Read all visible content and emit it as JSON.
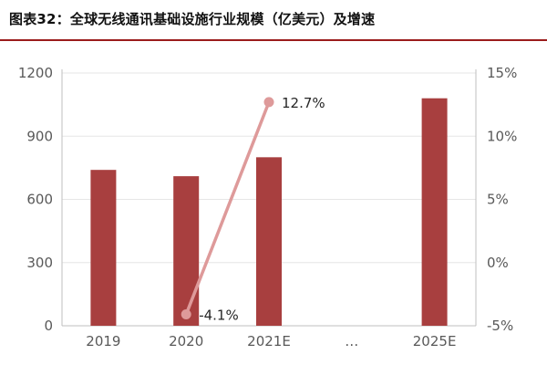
{
  "title": "图表32：全球无线通讯基础设施行业规模（亿美元）及增速",
  "chart_data": {
    "type": "bar",
    "title": "图表32：全球无线通讯基础设施行业规模（亿美元）及增速",
    "categories": [
      "2019",
      "2020",
      "2021E",
      "…",
      "2025E"
    ],
    "series": [
      {
        "type": "bar",
        "axis": "left",
        "values": [
          740,
          710,
          800,
          null,
          1080
        ]
      },
      {
        "type": "line",
        "axis": "right",
        "values": [
          null,
          -4.1,
          12.7,
          null,
          null
        ],
        "labels": [
          null,
          "-4.1%",
          "12.7%",
          null,
          null
        ]
      }
    ],
    "y_left": {
      "ylim": [
        0,
        1200
      ],
      "ticks": [
        "0",
        "300",
        "600",
        "900",
        "1200"
      ]
    },
    "y_right": {
      "ylim": [
        -5,
        15
      ],
      "ticks": [
        "-5%",
        "0%",
        "5%",
        "10%",
        "15%"
      ]
    },
    "grid": true,
    "colors": {
      "bar": "#a83f3f",
      "line": "#de9a9a",
      "axis": "#bfbfbf",
      "rule": "#9b1c1c"
    }
  }
}
